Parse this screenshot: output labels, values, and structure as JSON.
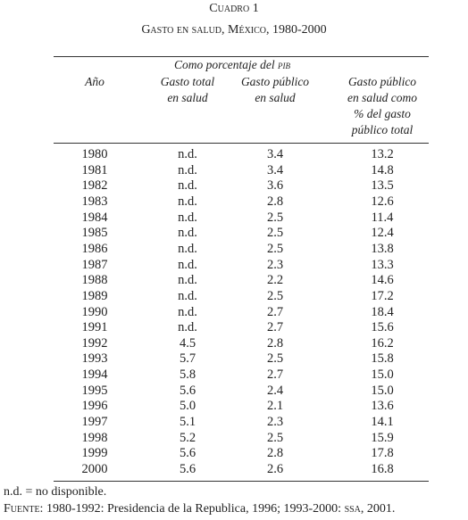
{
  "header": {
    "label": "Cuadro 1",
    "title": "Gasto en salud, México, 1980-2000"
  },
  "table": {
    "group_header": {
      "text": "Como porcentaje del ",
      "abbr": "pib"
    },
    "columns": [
      [
        "Año"
      ],
      [
        "Gasto total",
        "en salud"
      ],
      [
        "Gasto público",
        "en salud"
      ],
      [
        "Gasto público",
        "en salud como",
        "% del gasto",
        "público total"
      ]
    ],
    "rows": [
      [
        "1980",
        "n.d.",
        "3.4",
        "13.2"
      ],
      [
        "1981",
        "n.d.",
        "3.4",
        "14.8"
      ],
      [
        "1982",
        "n.d.",
        "3.6",
        "13.5"
      ],
      [
        "1983",
        "n.d.",
        "2.8",
        "12.6"
      ],
      [
        "1984",
        "n.d.",
        "2.5",
        "11.4"
      ],
      [
        "1985",
        "n.d.",
        "2.5",
        "12.4"
      ],
      [
        "1986",
        "n.d.",
        "2.5",
        "13.8"
      ],
      [
        "1987",
        "n.d.",
        "2.3",
        "13.3"
      ],
      [
        "1988",
        "n.d.",
        "2.2",
        "14.6"
      ],
      [
        "1989",
        "n.d.",
        "2.5",
        "17.2"
      ],
      [
        "1990",
        "n.d.",
        "2.7",
        "18.4"
      ],
      [
        "1991",
        "n.d.",
        "2.7",
        "15.6"
      ],
      [
        "1992",
        "4.5",
        "2.8",
        "16.2"
      ],
      [
        "1993",
        "5.7",
        "2.5",
        "15.8"
      ],
      [
        "1994",
        "5.8",
        "2.7",
        "15.0"
      ],
      [
        "1995",
        "5.6",
        "2.4",
        "15.0"
      ],
      [
        "1996",
        "5.0",
        "2.1",
        "13.6"
      ],
      [
        "1997",
        "5.1",
        "2.3",
        "14.1"
      ],
      [
        "1998",
        "5.2",
        "2.5",
        "15.9"
      ],
      [
        "1999",
        "5.6",
        "2.8",
        "17.8"
      ],
      [
        "2000",
        "5.6",
        "2.6",
        "16.8"
      ]
    ]
  },
  "notes": {
    "abbreviation": "n.d. = no disponible.",
    "source": [
      "Fuente:",
      " 1980-1992: Presidencia de la Republica, 1996; 1993-2000: ",
      "ssa",
      ", 2001."
    ]
  }
}
